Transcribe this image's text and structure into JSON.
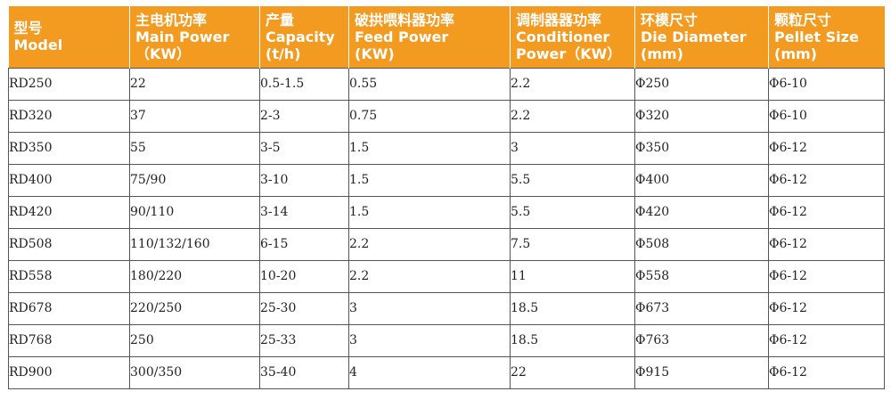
{
  "table": {
    "headers": [
      {
        "zh": "型号",
        "en": "Model",
        "unit": ""
      },
      {
        "zh": "主电机功率",
        "en": "Main Power",
        "unit": "（KW）"
      },
      {
        "zh": "产量",
        "en": "Capacity",
        "unit": "(t/h)"
      },
      {
        "zh": "破拱喂料器功率",
        "en": "Feed Power",
        "unit": "(KW)"
      },
      {
        "zh": "调制器器功率",
        "en": "Conditioner",
        "unit": "Power（KW）"
      },
      {
        "zh": "环模尺寸",
        "en": "Die Diameter",
        "unit": "(mm)"
      },
      {
        "zh": "颗粒尺寸",
        "en": "Pellet Size",
        "unit": "(mm)"
      }
    ],
    "rows": [
      [
        "RD250",
        "22",
        "0.5-1.5",
        "0.55",
        "2.2",
        "Φ250",
        "Φ6-10"
      ],
      [
        "RD320",
        "37",
        "2-3",
        "0.75",
        "2.2",
        "Φ320",
        "Φ6-10"
      ],
      [
        "RD350",
        "55",
        "3-5",
        "1.5",
        "3",
        "Φ350",
        "Φ6-12"
      ],
      [
        "RD400",
        "75/90",
        "3-10",
        "1.5",
        "5.5",
        "Φ400",
        "Φ6-12"
      ],
      [
        "RD420",
        "90/110",
        "3-14",
        "1.5",
        "5.5",
        "Φ420",
        "Φ6-12"
      ],
      [
        "RD508",
        "110/132/160",
        "6-15",
        "2.2",
        "7.5",
        "Φ508",
        "Φ6-12"
      ],
      [
        "RD558",
        "180/220",
        "10-20",
        "2.2",
        "11",
        "Φ558",
        "Φ6-12"
      ],
      [
        "RD678",
        "220/250",
        "25-30",
        "3",
        "18.5",
        "Φ673",
        "Φ6-12"
      ],
      [
        "RD768",
        "250",
        "25-33",
        "3",
        "18.5",
        "Φ763",
        "Φ6-12"
      ],
      [
        "RD900",
        "300/350",
        "35-40",
        "4",
        "22",
        "Φ915",
        "Φ6-12"
      ]
    ]
  },
  "colors": {
    "header_bg": "#f39a21",
    "header_text": "#ffffff",
    "border": "#555555"
  }
}
